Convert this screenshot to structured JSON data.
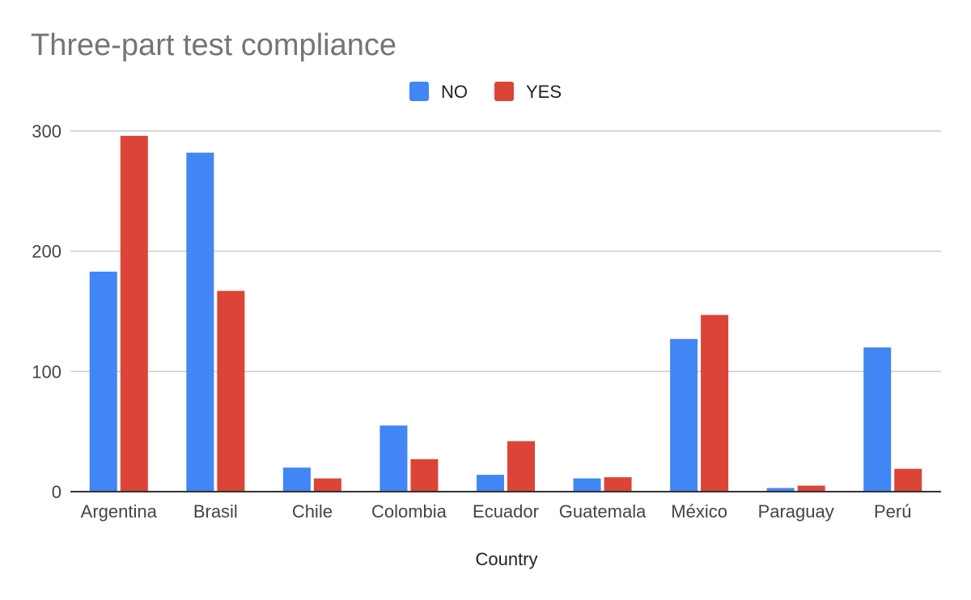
{
  "chart_data": {
    "type": "bar",
    "title": "Three-part test compliance",
    "xlabel": "Country",
    "ylabel": "",
    "categories": [
      "Argentina",
      "Brasil",
      "Chile",
      "Colombia",
      "Ecuador",
      "Guatemala",
      "México",
      "Paraguay",
      "Perú"
    ],
    "series": [
      {
        "name": "NO",
        "color": "#4285f4",
        "values": [
          183,
          282,
          20,
          55,
          14,
          11,
          127,
          3,
          120
        ]
      },
      {
        "name": "YES",
        "color": "#db4437",
        "values": [
          296,
          167,
          11,
          27,
          42,
          12,
          147,
          5,
          19
        ]
      }
    ],
    "ylim": [
      0,
      300
    ],
    "yticks": [
      0,
      100,
      200,
      300
    ],
    "grid": true,
    "legend": "top-center"
  }
}
